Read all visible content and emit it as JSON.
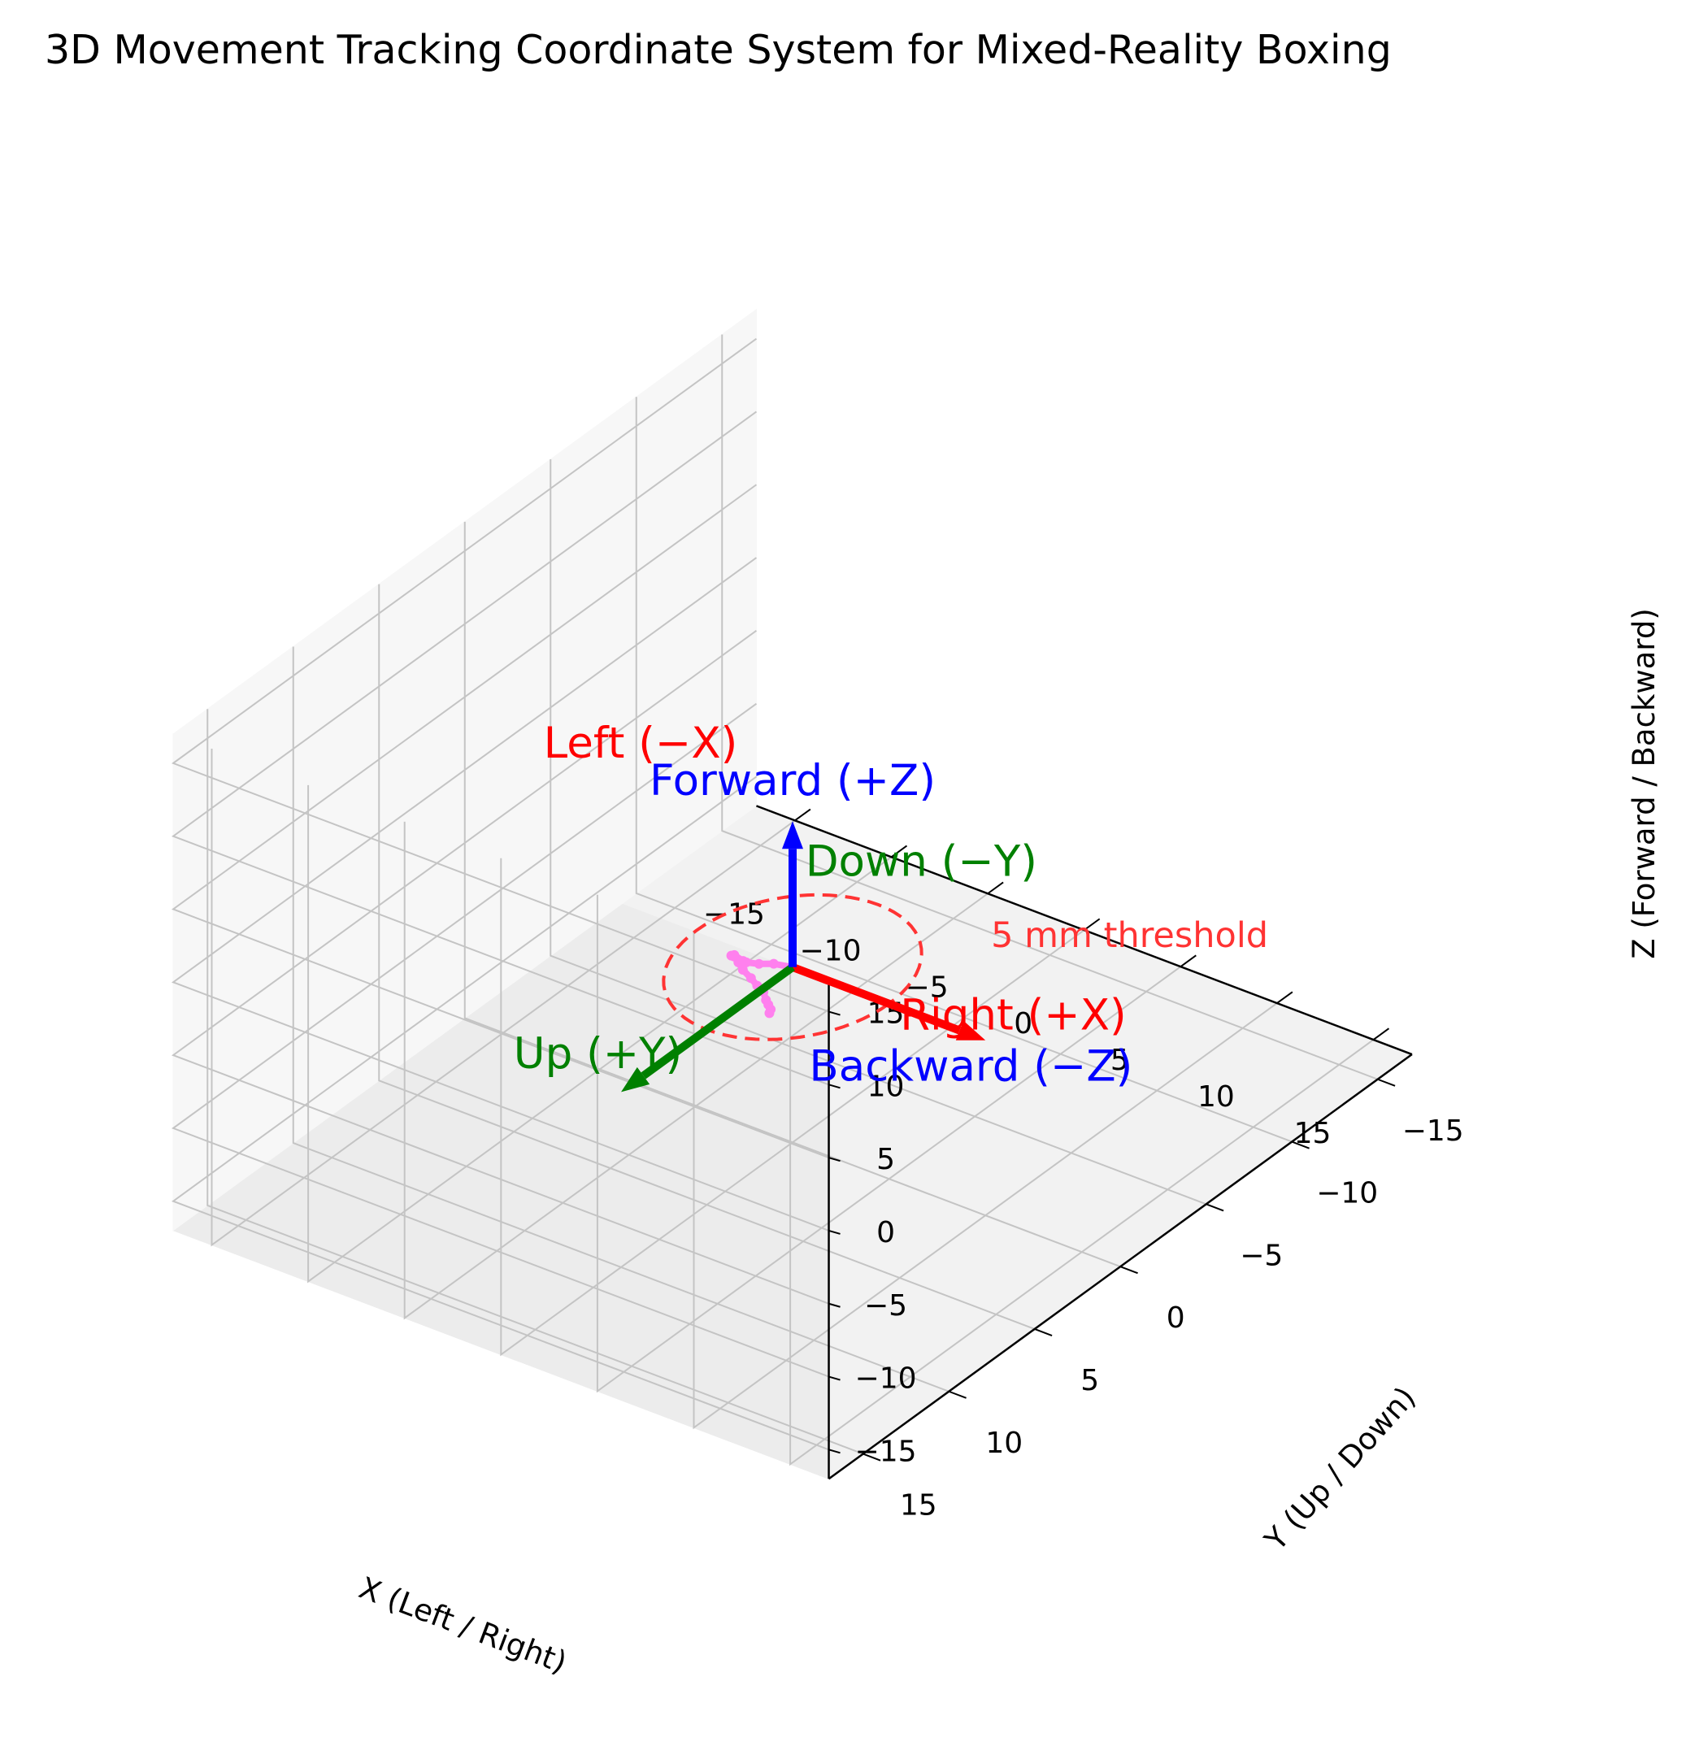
{
  "chart_data": {
    "type": "scatter",
    "projection": "3d",
    "title": "3D Movement Tracking Coordinate System for Mixed-Reality Boxing",
    "xlabel": "X (Left / Right)",
    "ylabel": "Y (Up / Down)",
    "zlabel": "Z (Forward / Backward)",
    "xlim": [
      -17,
      17
    ],
    "ylim": [
      -17,
      17
    ],
    "zlim": [
      -17,
      17
    ],
    "ticks": [
      -15,
      -10,
      -5,
      0,
      5,
      10,
      15
    ],
    "tick_labels": [
      "−15",
      "−10",
      "−5",
      "0",
      "5",
      "10",
      "15"
    ],
    "grid": true,
    "origin": [
      0,
      0,
      -5
    ],
    "arrows": [
      {
        "name": "right",
        "label": "Right (+X)",
        "color": "#ff0000",
        "vector": [
          10,
          0,
          0
        ]
      },
      {
        "name": "up",
        "label": "Up (+Y)",
        "color": "#008000",
        "vector": [
          0,
          10,
          0
        ]
      },
      {
        "name": "forward",
        "label": "Forward (+Z)",
        "color": "#0000ff",
        "vector": [
          0,
          0,
          10
        ]
      }
    ],
    "direction_labels": [
      {
        "name": "left",
        "label": "Left (−X)",
        "color": "#ff0000"
      },
      {
        "name": "down",
        "label": "Down (−Y)",
        "color": "#008000"
      },
      {
        "name": "backward",
        "label": "Backward (−Z)",
        "color": "#0000ff"
      }
    ],
    "threshold": {
      "label": "5 mm threshold",
      "radius": 5,
      "color": "#ff3333"
    },
    "trajectory": {
      "color": "#ff80ee",
      "points": [
        [
          0.0,
          0.0,
          -5.0
        ],
        [
          -0.8,
          0.2,
          -5.0
        ],
        [
          -1.3,
          0.5,
          -5.0
        ],
        [
          -1.6,
          0.9,
          -4.7
        ],
        [
          -1.5,
          1.2,
          -4.3
        ],
        [
          -1.6,
          1.6,
          -3.6
        ],
        [
          -1.4,
          2.0,
          -3.2
        ],
        [
          -1.0,
          2.3,
          -2.8
        ],
        [
          -0.5,
          2.6,
          -2.7
        ],
        [
          0.0,
          2.9,
          -2.7
        ],
        [
          0.6,
          3.1,
          -2.8
        ],
        [
          1.1,
          3.3,
          -2.9
        ],
        [
          1.6,
          3.5,
          -2.9
        ],
        [
          2.0,
          3.8,
          -3.0
        ],
        [
          2.3,
          4.0,
          -3.0
        ],
        [
          2.6,
          4.2,
          -3.0
        ],
        [
          2.8,
          4.5,
          -2.9
        ]
      ]
    }
  }
}
